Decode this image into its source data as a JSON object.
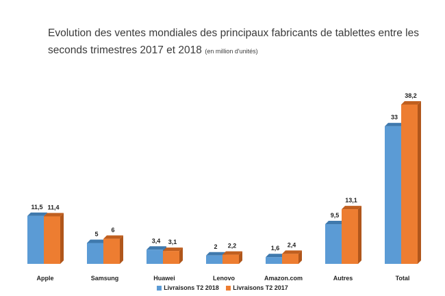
{
  "title": {
    "main": "Evolution des ventes mondiales des principaux fabricants de tablettes entre les seconds trimestres 2017 et 2018",
    "sub": "(en million d'unités)"
  },
  "legend": {
    "items": [
      {
        "label": "Livraisons T2 2018",
        "color": "#5b9bd5"
      },
      {
        "label": "Livraisons T2 2017",
        "color": "#ed7d31"
      }
    ]
  },
  "chart_data": {
    "type": "bar",
    "title": "Evolution des ventes mondiales des principaux fabricants de tablettes entre les seconds trimestres 2017 et 2018 (en million d'unités)",
    "categories": [
      "Apple",
      "Samsung",
      "Huawei",
      "Lenovo",
      "Amazon.com",
      "Autres",
      "Total"
    ],
    "series": [
      {
        "name": "Livraisons T2 2018",
        "color": "#5b9bd5",
        "values": [
          11.5,
          5,
          3.4,
          2,
          1.6,
          9.5,
          33
        ],
        "labels": [
          "11,5",
          "5",
          "3,4",
          "2",
          "1,6",
          "9,5",
          "33"
        ]
      },
      {
        "name": "Livraisons T2 2017",
        "color": "#ed7d31",
        "values": [
          11.4,
          6,
          3.1,
          2.2,
          2.4,
          13.1,
          38.2
        ],
        "labels": [
          "11,4",
          "6",
          "3,1",
          "2,2",
          "2,4",
          "13,1",
          "38,2"
        ]
      }
    ],
    "ylim": [
      0,
      40
    ],
    "grid": false,
    "legend_position": "bottom",
    "style": "3d-column"
  }
}
